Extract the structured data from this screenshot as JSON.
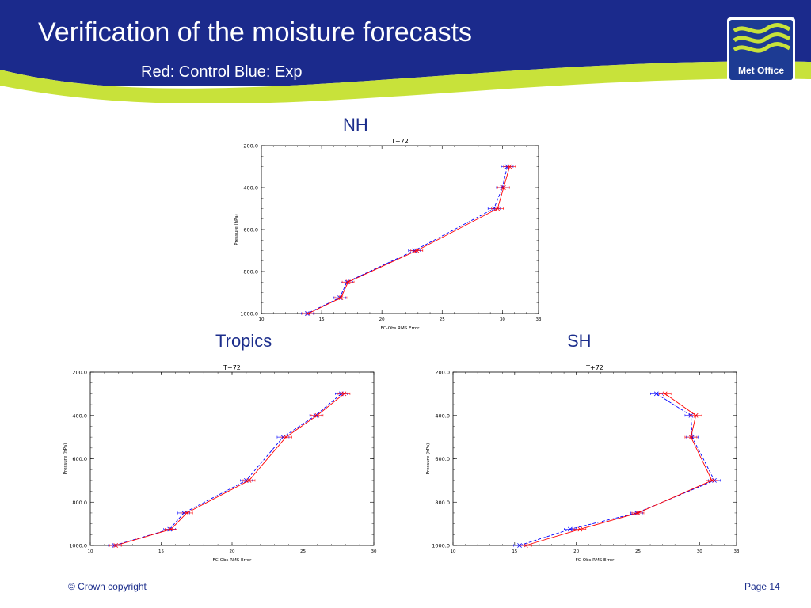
{
  "slide": {
    "title": "Verification of the moisture forecasts",
    "subtitle": "Red: Control Blue: Exp",
    "logo_text": "Met Office",
    "footer_copyright": "© Crown copyright",
    "page_label": "Page 14"
  },
  "colors": {
    "banner": "#1b2a8c",
    "swoosh": "#c8e23a",
    "text_accent": "#1c2e8c",
    "control_series": "#ff0000",
    "exp_series": "#0000ff"
  },
  "chart_data": [
    {
      "region_label": "NH",
      "type": "line",
      "title": "T+72",
      "xlabel": "FC-Obs RMS Error",
      "ylabel": "Pressure (hPa)",
      "xlim": [
        10,
        33
      ],
      "ylim": [
        1000,
        200
      ],
      "y_inverted": true,
      "xticks": [
        "10",
        "15",
        "20",
        "25",
        "30",
        "33"
      ],
      "yticks": [
        "200.0",
        "400.0",
        "600.0",
        "800.0",
        "1000.0"
      ],
      "y_values": [
        300,
        400,
        500,
        700,
        850,
        925,
        1000
      ],
      "series": [
        {
          "color": "red",
          "style": "solid",
          "x": [
            30.6,
            30.1,
            29.6,
            22.9,
            17.2,
            16.6,
            13.9
          ]
        },
        {
          "color": "blue",
          "style": "dashed",
          "x": [
            30.4,
            30.0,
            29.3,
            22.7,
            17.1,
            16.5,
            13.8
          ]
        }
      ]
    },
    {
      "region_label": "Tropics",
      "type": "line",
      "title": "T+72",
      "xlabel": "FC-Obs RMS Error",
      "ylabel": "Pressure (hPa)",
      "xlim": [
        10,
        30
      ],
      "ylim": [
        1000,
        200
      ],
      "y_inverted": true,
      "xticks": [
        "10",
        "15",
        "20",
        "25",
        "30"
      ],
      "yticks": [
        "200.0",
        "400.0",
        "600.0",
        "800.0",
        "1000.0"
      ],
      "y_values": [
        300,
        400,
        500,
        700,
        850,
        925,
        1000
      ],
      "series": [
        {
          "color": "red",
          "style": "solid",
          "x": [
            27.9,
            26.0,
            23.8,
            21.2,
            16.8,
            15.7,
            11.8
          ]
        },
        {
          "color": "blue",
          "style": "dashed",
          "x": [
            27.7,
            25.9,
            23.6,
            21.0,
            16.6,
            15.6,
            11.7
          ]
        }
      ]
    },
    {
      "region_label": "SH",
      "type": "line",
      "title": "T+72",
      "xlabel": "FC-Obs RMS Error",
      "ylabel": "Pressure (hPa)",
      "xlim": [
        10,
        33
      ],
      "ylim": [
        1000,
        200
      ],
      "y_inverted": true,
      "xticks": [
        "10",
        "15",
        "20",
        "25",
        "30",
        "33"
      ],
      "yticks": [
        "200.0",
        "400.0",
        "600.0",
        "800.0",
        "1000.0"
      ],
      "y_values": [
        300,
        400,
        500,
        700,
        850,
        925,
        1000
      ],
      "series": [
        {
          "color": "red",
          "style": "solid",
          "x": [
            27.2,
            29.7,
            29.3,
            31.0,
            25.0,
            20.3,
            15.9
          ]
        },
        {
          "color": "blue",
          "style": "dashed",
          "x": [
            26.5,
            29.3,
            29.4,
            31.2,
            24.9,
            19.5,
            15.4
          ]
        }
      ]
    }
  ]
}
